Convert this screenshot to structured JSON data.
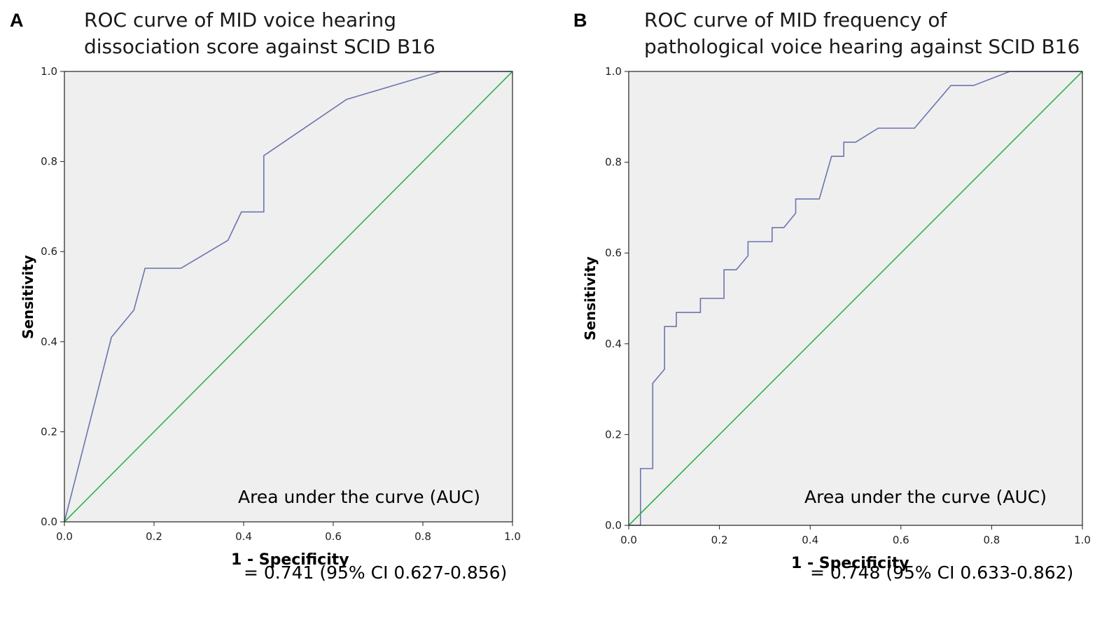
{
  "chart_data": [
    {
      "panel": "A",
      "type": "line",
      "title_line1": "ROC curve of MID voice hearing",
      "title_line2": "dissociation score against SCID B16",
      "xlabel": "1 - Specificity",
      "ylabel": "Sensitivity",
      "xlim": [
        0,
        1
      ],
      "ylim": [
        0,
        1
      ],
      "xticks": [
        "0.0",
        "0.2",
        "0.4",
        "0.6",
        "0.8",
        "1.0"
      ],
      "yticks": [
        "0.0",
        "0.2",
        "0.4",
        "0.6",
        "0.8",
        "1.0"
      ],
      "auc_line1": "Area under the curve (AUC)",
      "auc_line2": " = 0.741 (95% CI 0.627-0.856)",
      "series": [
        {
          "name": "ROC curve",
          "color": "#6b74b0",
          "x": [
            0.0,
            0.105,
            0.155,
            0.18,
            0.26,
            0.365,
            0.395,
            0.445,
            0.445,
            0.63,
            0.84,
            1.0
          ],
          "y": [
            0.0,
            0.41,
            0.47,
            0.563,
            0.563,
            0.625,
            0.688,
            0.688,
            0.813,
            0.938,
            1.0,
            1.0
          ]
        },
        {
          "name": "Reference line",
          "color": "#2db34a",
          "x": [
            0,
            1
          ],
          "y": [
            0,
            1
          ]
        }
      ]
    },
    {
      "panel": "B",
      "type": "line",
      "title_line1": "ROC curve of MID frequency of",
      "title_line2": "pathological voice hearing against SCID B16",
      "xlabel": "1 - Specificity",
      "ylabel": "Sensitivity",
      "xlim": [
        0,
        1
      ],
      "ylim": [
        0,
        1
      ],
      "xticks": [
        "0.0",
        "0.2",
        "0.4",
        "0.6",
        "0.8",
        "1.0"
      ],
      "yticks": [
        "0.0",
        "0.2",
        "0.4",
        "0.6",
        "0.8",
        "1.0"
      ],
      "auc_line1": "Area under the curve (AUC)",
      "auc_line2": " = 0.748 (95% CI 0.633-0.862)",
      "series": [
        {
          "name": "ROC curve",
          "color": "#6b74b0",
          "x": [
            0.0,
            0.026,
            0.026,
            0.053,
            0.053,
            0.079,
            0.079,
            0.105,
            0.105,
            0.158,
            0.158,
            0.21,
            0.21,
            0.237,
            0.263,
            0.263,
            0.316,
            0.316,
            0.342,
            0.368,
            0.368,
            0.42,
            0.447,
            0.474,
            0.474,
            0.5,
            0.55,
            0.63,
            0.71,
            0.76,
            0.84,
            1.0
          ],
          "y": [
            0.0,
            0.0,
            0.125,
            0.125,
            0.313,
            0.344,
            0.438,
            0.438,
            0.469,
            0.469,
            0.5,
            0.5,
            0.563,
            0.563,
            0.594,
            0.625,
            0.625,
            0.656,
            0.656,
            0.688,
            0.719,
            0.719,
            0.813,
            0.813,
            0.844,
            0.844,
            0.875,
            0.875,
            0.969,
            0.969,
            1.0,
            1.0
          ]
        },
        {
          "name": "Reference line",
          "color": "#2db34a",
          "x": [
            0,
            1
          ],
          "y": [
            0,
            1
          ]
        }
      ]
    }
  ]
}
